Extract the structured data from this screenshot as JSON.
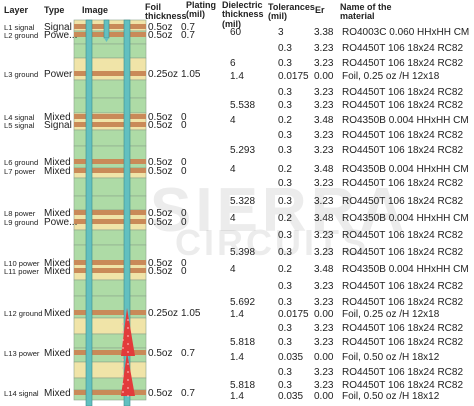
{
  "headers": {
    "layer": "Layer",
    "type": "Type",
    "image": "Image",
    "foil": "Foil\nthickness",
    "plating": "Plating\n(mil)",
    "dielectric": "Dielectric\nthickness\n(mil)",
    "tolerances": "Tolerances\n(mil)",
    "er": "Er",
    "material": "Name of the\nmaterial"
  },
  "watermark": {
    "line1": "SIERRA",
    "line2": "CIRCUITS"
  },
  "colors": {
    "copper": "#c98a58",
    "prepreg": "#aedba6",
    "core": "#f0e4a8",
    "via": "#62c0c0",
    "microvia": "#e23b3b"
  },
  "layers": [
    {
      "name": "L1 signal",
      "type": "Signal",
      "foil": "0.5oz",
      "plating": "0.7"
    },
    {
      "name": "L2 ground",
      "type": "Powe...",
      "foil": "0.5oz",
      "plating": "0.7"
    },
    {
      "name": "L3 ground",
      "type": "Power",
      "foil": "0.25oz",
      "plating": "1.05"
    },
    {
      "name": "L4 signal",
      "type": "Mixed",
      "foil": "0.5oz",
      "plating": "0"
    },
    {
      "name": "L5 signal",
      "type": "Signal",
      "foil": "0.5oz",
      "plating": "0"
    },
    {
      "name": "L6 ground",
      "type": "Mixed",
      "foil": "0.5oz",
      "plating": "0"
    },
    {
      "name": "L7 power",
      "type": "Mixed",
      "foil": "0.5oz",
      "plating": "0"
    },
    {
      "name": "L8 power",
      "type": "Mixed",
      "foil": "0.5oz",
      "plating": "0"
    },
    {
      "name": "L9 ground",
      "type": "Powe...",
      "foil": "0.5oz",
      "plating": "0"
    },
    {
      "name": "L10 power",
      "type": "Mixed",
      "foil": "0.5oz",
      "plating": "0"
    },
    {
      "name": "L11 power",
      "type": "Mixed",
      "foil": "0.5oz",
      "plating": "0"
    },
    {
      "name": "L12 ground",
      "type": "Mixed",
      "foil": "0.25oz",
      "plating": "1.05"
    },
    {
      "name": "L13 power",
      "type": "Mixed",
      "foil": "0.5oz",
      "plating": "0.7"
    },
    {
      "name": "L14 signal",
      "type": "Mixed",
      "foil": "0.5oz",
      "plating": "0.7"
    }
  ],
  "dielectrics": [
    {
      "thickness": "60",
      "tolerance": "3",
      "er": "3.38",
      "material": "RO4003C 0.060 HHxHH CM"
    },
    {
      "thickness": "",
      "tolerance": "0.3",
      "er": "3.23",
      "material": "RO4450T 106 18x24 RC82"
    },
    {
      "thickness": "6",
      "tolerance": "0.3",
      "er": "3.23",
      "material": "RO4450T 106 18x24 RC82"
    },
    {
      "thickness": "1.4",
      "tolerance": "0.0175",
      "er": "0.00",
      "material": "Foil, 0.25 oz /H 12x18"
    },
    {
      "thickness": "",
      "tolerance": "0.3",
      "er": "3.23",
      "material": "RO4450T 106 18x24 RC82"
    },
    {
      "thickness": "5.538",
      "tolerance": "0.3",
      "er": "3.23",
      "material": "RO4450T 106 18x24 RC82"
    },
    {
      "thickness": "4",
      "tolerance": "0.2",
      "er": "3.48",
      "material": "RO4350B 0.004 HHxHH CM"
    },
    {
      "thickness": "",
      "tolerance": "0.3",
      "er": "3.23",
      "material": "RO4450T 106 18x24 RC82"
    },
    {
      "thickness": "5.293",
      "tolerance": "0.3",
      "er": "3.23",
      "material": "RO4450T 106 18x24 RC82"
    },
    {
      "thickness": "4",
      "tolerance": "0.2",
      "er": "3.48",
      "material": "RO4350B 0.004 HHxHH CM"
    },
    {
      "thickness": "",
      "tolerance": "0.3",
      "er": "3.23",
      "material": "RO4450T 106 18x24 RC82"
    },
    {
      "thickness": "5.328",
      "tolerance": "0.3",
      "er": "3.23",
      "material": "RO4450T 106 18x24 RC82"
    },
    {
      "thickness": "4",
      "tolerance": "0.2",
      "er": "3.48",
      "material": "RO4350B 0.004 HHxHH CM"
    },
    {
      "thickness": "",
      "tolerance": "0.3",
      "er": "3.23",
      "material": "RO4450T 106 18x24 RC82"
    },
    {
      "thickness": "5.398",
      "tolerance": "0.3",
      "er": "3.23",
      "material": "RO4450T 106 18x24 RC82"
    },
    {
      "thickness": "4",
      "tolerance": "0.2",
      "er": "3.48",
      "material": "RO4350B 0.004 HHxHH CM"
    },
    {
      "thickness": "",
      "tolerance": "0.3",
      "er": "3.23",
      "material": "RO4450T 106 18x24 RC82"
    },
    {
      "thickness": "5.692",
      "tolerance": "0.3",
      "er": "3.23",
      "material": "RO4450T 106 18x24 RC82"
    },
    {
      "thickness": "1.4",
      "tolerance": "0.0175",
      "er": "0.00",
      "material": "Foil, 0.25 oz /H 12x18"
    },
    {
      "thickness": "",
      "tolerance": "0.3",
      "er": "3.23",
      "material": "RO4450T 106 18x24 RC82"
    },
    {
      "thickness": "5.818",
      "tolerance": "0.3",
      "er": "3.23",
      "material": "RO4450T 106 18x24 RC82"
    },
    {
      "thickness": "1.4",
      "tolerance": "0.035",
      "er": "0.00",
      "material": "Foil, 0.50 oz /H 18x12"
    },
    {
      "thickness": "",
      "tolerance": "0.3",
      "er": "3.23",
      "material": "RO4450T 106 18x24 RC82"
    },
    {
      "thickness": "5.818",
      "tolerance": "0.3",
      "er": "3.23",
      "material": "RO4450T 106 18x24 RC82"
    },
    {
      "thickness": "1.4",
      "tolerance": "0.035",
      "er": "0.00",
      "material": "Foil, 0.50 oz /H 18x12"
    }
  ]
}
